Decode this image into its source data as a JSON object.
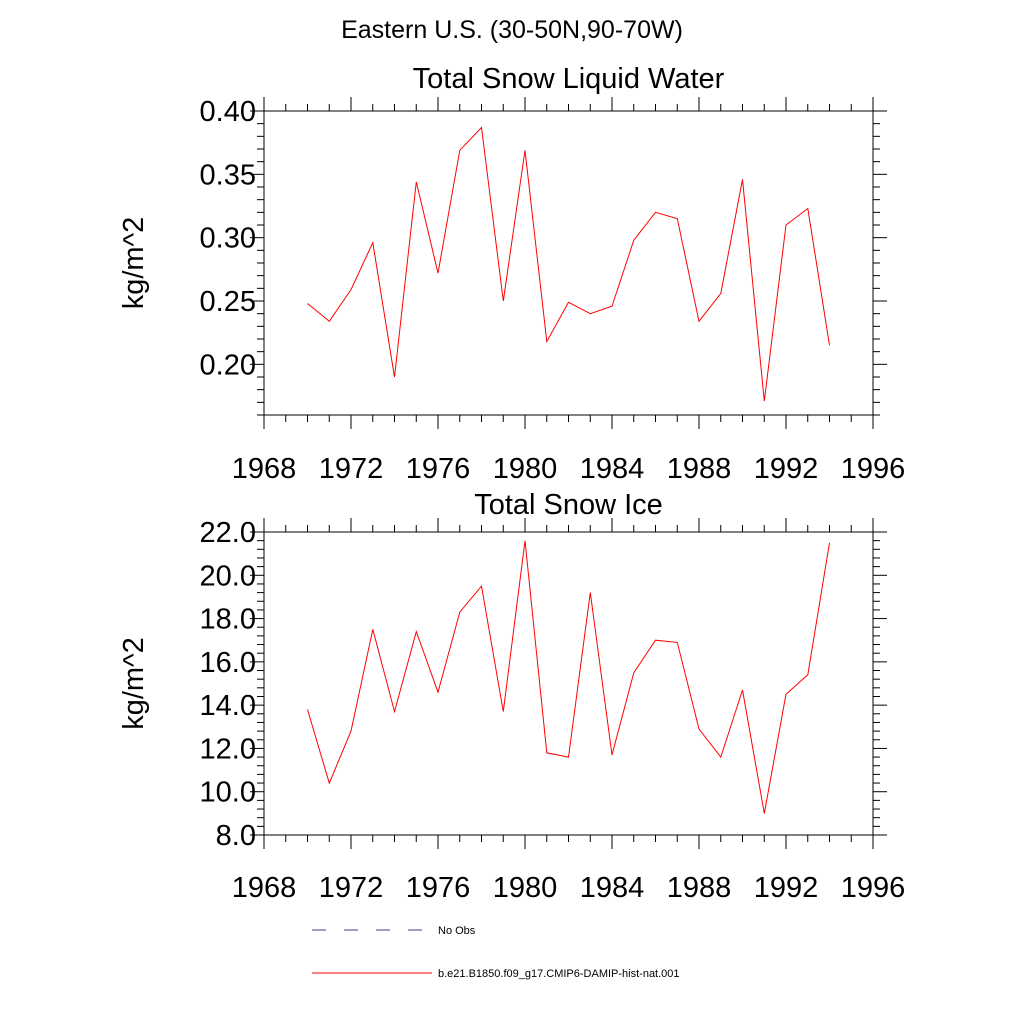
{
  "figure_title": "Eastern U.S. (30-50N,90-70W)",
  "colors": {
    "model": "#ff0000",
    "obs": "#3a3a8c",
    "axes": "#000000"
  },
  "legend": [
    {
      "label": "No Obs",
      "style": "dashed",
      "color": "#3a3a8c"
    },
    {
      "label": "b.e21.B1850.f09_g17.CMIP6-DAMIP-hist-nat.001",
      "style": "solid",
      "color": "#ff0000"
    }
  ],
  "chart_data": [
    {
      "type": "line",
      "title": "Total Snow Liquid Water",
      "ylabel": "kg/m^2",
      "xlabel": "",
      "xlim": [
        1968,
        1996
      ],
      "ylim": [
        0.16,
        0.4
      ],
      "xticks": [
        "1968",
        "1972",
        "1976",
        "1980",
        "1984",
        "1988",
        "1992",
        "1996"
      ],
      "yticks": [
        "0.20",
        "0.25",
        "0.30",
        "0.35",
        "0.40"
      ],
      "grid": false,
      "x": [
        1970,
        1971,
        1972,
        1973,
        1974,
        1975,
        1976,
        1977,
        1978,
        1979,
        1980,
        1981,
        1982,
        1983,
        1984,
        1985,
        1986,
        1987,
        1988,
        1989,
        1990,
        1991,
        1992,
        1993,
        1994
      ],
      "series": [
        {
          "name": "b.e21.B1850.f09_g17.CMIP6-DAMIP-hist-nat.001",
          "values": [
            0.248,
            0.234,
            0.259,
            0.296,
            0.19,
            0.344,
            0.272,
            0.369,
            0.387,
            0.25,
            0.369,
            0.218,
            0.249,
            0.24,
            0.246,
            0.298,
            0.32,
            0.315,
            0.234,
            0.256,
            0.346,
            0.171,
            0.31,
            0.323,
            0.215
          ]
        }
      ]
    },
    {
      "type": "line",
      "title": "Total Snow Ice",
      "ylabel": "kg/m^2",
      "xlabel": "",
      "xlim": [
        1968,
        1996
      ],
      "ylim": [
        8.0,
        22.0
      ],
      "xticks": [
        "1968",
        "1972",
        "1976",
        "1980",
        "1984",
        "1988",
        "1992",
        "1996"
      ],
      "yticks": [
        "8.0",
        "10.0",
        "12.0",
        "14.0",
        "16.0",
        "18.0",
        "20.0",
        "22.0"
      ],
      "grid": false,
      "x": [
        1970,
        1971,
        1972,
        1973,
        1974,
        1975,
        1976,
        1977,
        1978,
        1979,
        1980,
        1981,
        1982,
        1983,
        1984,
        1985,
        1986,
        1987,
        1988,
        1989,
        1990,
        1991,
        1992,
        1993,
        1994
      ],
      "series": [
        {
          "name": "b.e21.B1850.f09_g17.CMIP6-DAMIP-hist-nat.001",
          "values": [
            13.8,
            10.4,
            12.8,
            17.5,
            13.7,
            17.4,
            14.6,
            18.3,
            19.5,
            13.7,
            21.6,
            11.8,
            11.6,
            19.2,
            11.7,
            15.5,
            17.0,
            16.9,
            12.9,
            11.6,
            14.7,
            9.0,
            14.5,
            15.4,
            21.5
          ]
        }
      ]
    }
  ]
}
